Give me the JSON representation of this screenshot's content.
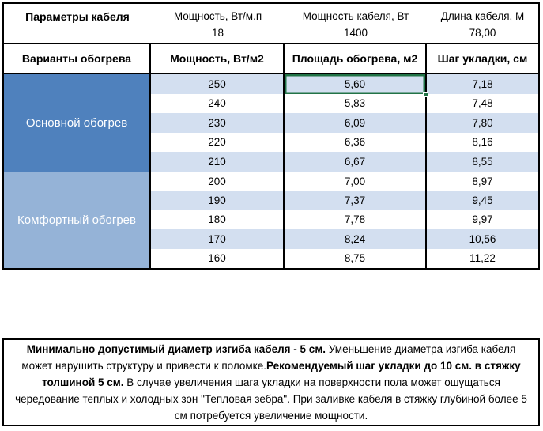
{
  "params": {
    "title": "Параметры кабеля",
    "items": [
      {
        "label": "Мощность, Вт/м.п",
        "value": "18"
      },
      {
        "label": "Мощность кабеля, Вт",
        "value": "1400"
      },
      {
        "label": "Длина кабеля, М",
        "value": "78,00"
      }
    ]
  },
  "columns": [
    "Варианты обогрева",
    "Мощность, Вт/м2",
    "Площадь обогрева, м2",
    "Шаг укладки, см"
  ],
  "sections": [
    {
      "label": "Основной обогрев",
      "color": "#4F81BD",
      "rows": [
        {
          "power": "250",
          "area": "5,60",
          "step": "7,18",
          "selected": true
        },
        {
          "power": "240",
          "area": "5,83",
          "step": "7,48"
        },
        {
          "power": "230",
          "area": "6,09",
          "step": "7,80"
        },
        {
          "power": "220",
          "area": "6,36",
          "step": "8,16"
        },
        {
          "power": "210",
          "area": "6,67",
          "step": "8,55"
        }
      ]
    },
    {
      "label": "Комфортный обогрев",
      "color": "#95B3D7",
      "rows": [
        {
          "power": "200",
          "area": "7,00",
          "step": "8,97"
        },
        {
          "power": "190",
          "area": "7,37",
          "step": "9,45"
        },
        {
          "power": "180",
          "area": "7,78",
          "step": "9,97"
        },
        {
          "power": "170",
          "area": "8,24",
          "step": "10,56"
        },
        {
          "power": "160",
          "area": "8,75",
          "step": "11,22"
        }
      ]
    }
  ],
  "selection": {
    "value": "5,60",
    "border_color": "#217346"
  },
  "note": {
    "segments": [
      {
        "text": "Минимально допустимый диаметр изгиба кабеля - 5 см.",
        "bold": true
      },
      {
        "text": "  Уменьшение диаметра изгиба кабеля может нарушить структуру и привести к поломке.",
        "bold": false
      },
      {
        "text": "Рекомендуемый шаг укладки до 10 см. в стяжку толшиной 5 см.",
        "bold": true
      },
      {
        "text": " В  случае увеличения шага укладки на поверхности пола может ошущаться чередование теплых и холодных зон \"Тепловая зебра\". При заливке кабеля в стяжку глубиной более 5 см потребуется увеличение мощности.",
        "bold": false
      }
    ]
  },
  "colors": {
    "stripe": "#D3DFF0",
    "section_main": "#4F81BD",
    "section_comfort": "#95B3D7",
    "selection_green": "#217346",
    "border": "#000000"
  }
}
